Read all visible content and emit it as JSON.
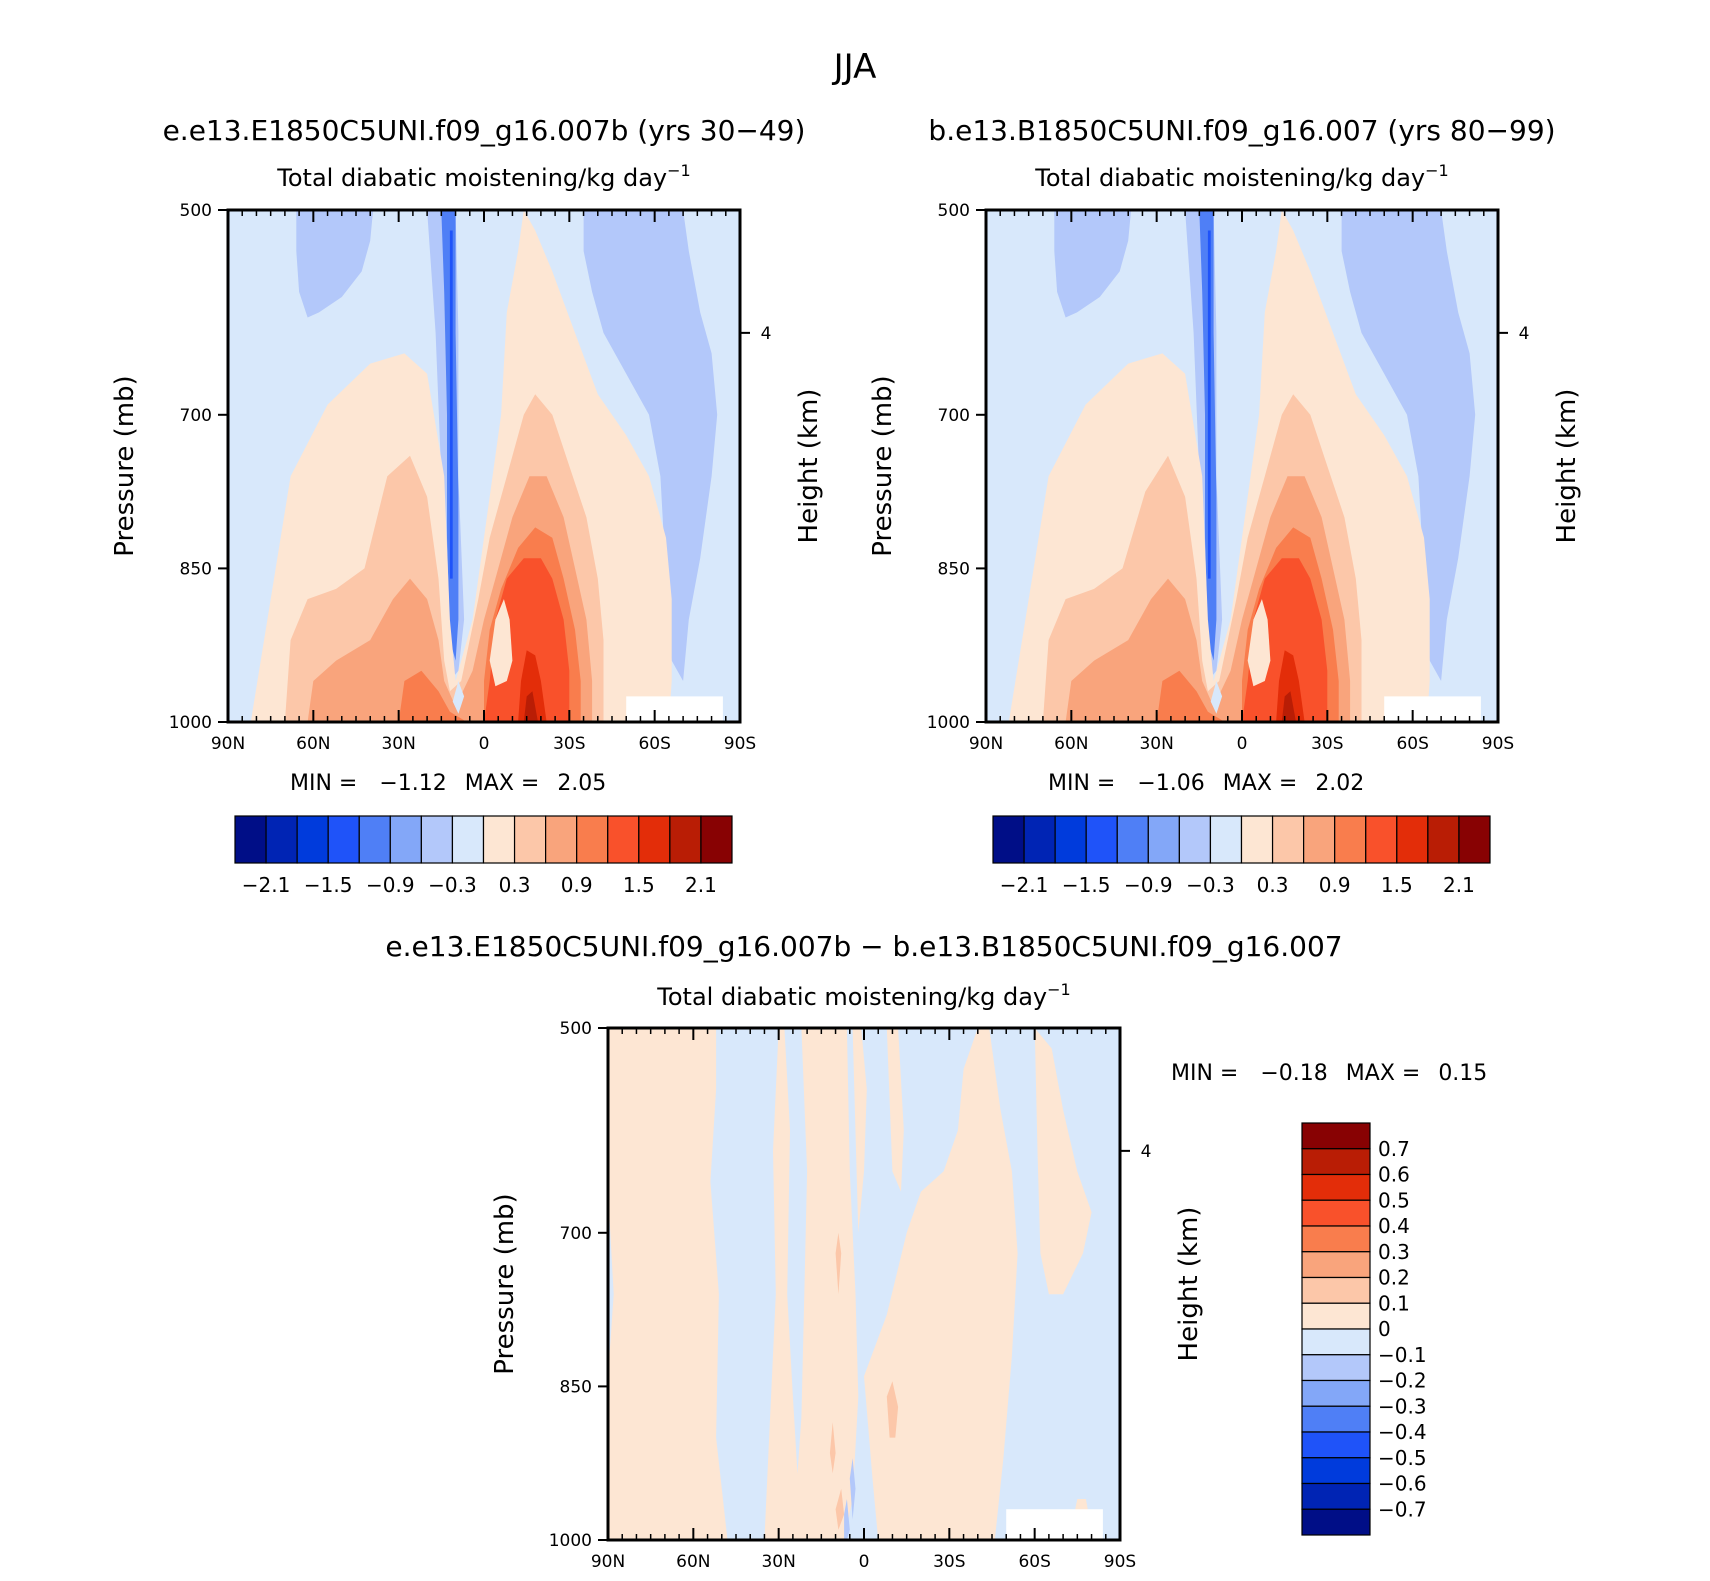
{
  "figure": {
    "title": "JJA"
  },
  "chart_data": [
    {
      "type": "heatmap",
      "case_title": "e.e13.E1850C5UNI.f09_g16.007b (yrs 30-49)",
      "variable_title": "Total diabatic moistening/kg day",
      "variable_exponent": "-1",
      "xlabel": "",
      "ylabel": "Pressure (mb)",
      "y2label": "Height (km)",
      "x_ticks": [
        "90N",
        "60N",
        "30N",
        "0",
        "30S",
        "60S",
        "90S"
      ],
      "y_ticks": [
        "500",
        "700",
        "850",
        "1000"
      ],
      "y2_ticks": [
        "4"
      ],
      "ylim": [
        500,
        1000
      ],
      "min_label": "MIN =",
      "min_value": "-1.12",
      "max_label": "MAX =",
      "max_value": "2.05",
      "colorbar": {
        "orientation": "horizontal",
        "colors": [
          "#000e87",
          "#0024b4",
          "#003bdc",
          "#1f53f9",
          "#4f7ff6",
          "#83a7f8",
          "#b3c8fa",
          "#d8e8fb",
          "#fde6d3",
          "#fcc7a9",
          "#f9a47c",
          "#f97d4d",
          "#f9512b",
          "#e32d09",
          "#b91d05",
          "#880203"
        ],
        "tick_labels": [
          "-2.1",
          "-1.5",
          "-0.9",
          "-0.3",
          "0.3",
          "0.9",
          "1.5",
          "2.1"
        ]
      }
    },
    {
      "type": "heatmap",
      "case_title": "b.e13.B1850C5UNI.f09_g16.007 (yrs 80-99)",
      "variable_title": "Total diabatic moistening/kg day",
      "variable_exponent": "-1",
      "xlabel": "",
      "ylabel": "Pressure (mb)",
      "y2label": "Height (km)",
      "x_ticks": [
        "90N",
        "60N",
        "30N",
        "0",
        "30S",
        "60S",
        "90S"
      ],
      "y_ticks": [
        "500",
        "700",
        "850",
        "1000"
      ],
      "y2_ticks": [
        "4"
      ],
      "ylim": [
        500,
        1000
      ],
      "min_label": "MIN =",
      "min_value": "-1.06",
      "max_label": "MAX =",
      "max_value": "2.02",
      "colorbar": {
        "orientation": "horizontal",
        "colors": [
          "#000e87",
          "#0024b4",
          "#003bdc",
          "#1f53f9",
          "#4f7ff6",
          "#83a7f8",
          "#b3c8fa",
          "#d8e8fb",
          "#fde6d3",
          "#fcc7a9",
          "#f9a47c",
          "#f97d4d",
          "#f9512b",
          "#e32d09",
          "#b91d05",
          "#880203"
        ],
        "tick_labels": [
          "-2.1",
          "-1.5",
          "-0.9",
          "-0.3",
          "0.3",
          "0.9",
          "1.5",
          "2.1"
        ]
      }
    },
    {
      "type": "heatmap",
      "case_title": "e.e13.E1850C5UNI.f09_g16.007b - b.e13.B1850C5UNI.f09_g16.007",
      "variable_title": "Total diabatic moistening/kg day",
      "variable_exponent": "-1",
      "xlabel": "",
      "ylabel": "Pressure (mb)",
      "y2label": "Height (km)",
      "x_ticks": [
        "90N",
        "60N",
        "30N",
        "0",
        "30S",
        "60S",
        "90S"
      ],
      "y_ticks": [
        "500",
        "700",
        "850",
        "1000"
      ],
      "y2_ticks": [
        "4"
      ],
      "ylim": [
        500,
        1000
      ],
      "min_label": "MIN =",
      "min_value": "-0.18",
      "max_label": "MAX =",
      "max_value": "0.15",
      "colorbar": {
        "orientation": "vertical",
        "colors_top_to_bottom": [
          "#880203",
          "#b91d05",
          "#e32d09",
          "#f9512b",
          "#f97d4d",
          "#f9a47c",
          "#fcc7a9",
          "#fde6d3",
          "#d8e8fb",
          "#b3c8fa",
          "#83a7f8",
          "#4f7ff6",
          "#1f53f9",
          "#003bdc",
          "#0024b4",
          "#000e87"
        ],
        "tick_labels": [
          "0.7",
          "0.6",
          "0.5",
          "0.4",
          "0.3",
          "0.2",
          "0.1",
          "0",
          "-0.1",
          "-0.2",
          "-0.3",
          "-0.4",
          "-0.5",
          "-0.6",
          "-0.7"
        ]
      }
    }
  ]
}
